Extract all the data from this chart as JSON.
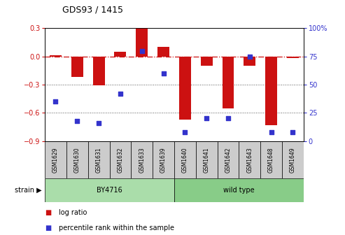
{
  "title": "GDS93 / 1415",
  "samples": [
    "GSM1629",
    "GSM1630",
    "GSM1631",
    "GSM1632",
    "GSM1633",
    "GSM1639",
    "GSM1640",
    "GSM1641",
    "GSM1642",
    "GSM1643",
    "GSM1648",
    "GSM1649"
  ],
  "log_ratios": [
    0.01,
    -0.22,
    -0.31,
    0.05,
    0.3,
    0.1,
    -0.67,
    -0.1,
    -0.55,
    -0.1,
    -0.73,
    -0.02
  ],
  "percentile_ranks": [
    35,
    18,
    16,
    42,
    80,
    60,
    8,
    20,
    20,
    75,
    8,
    8
  ],
  "group1_label": "BY4716",
  "group1_count": 6,
  "group2_label": "wild type",
  "group2_count": 6,
  "strain_label": "strain",
  "ylim_left": [
    -0.9,
    0.3
  ],
  "ylim_right": [
    0,
    100
  ],
  "yticks_left": [
    0.3,
    0.0,
    -0.3,
    -0.6,
    -0.9
  ],
  "yticks_right": [
    100,
    75,
    50,
    25,
    0
  ],
  "bar_color": "#cc1111",
  "dot_color": "#3333cc",
  "grid_color": "#555555",
  "hline_color": "#cc1111",
  "group1_color": "#aaddaa",
  "group2_color": "#88cc88",
  "tick_color_left": "#cc1111",
  "tick_color_right": "#3333cc",
  "legend_bar_label": "log ratio",
  "legend_dot_label": "percentile rank within the sample",
  "bar_width": 0.55,
  "sample_box_color": "#cccccc",
  "bg_color": "#ffffff"
}
